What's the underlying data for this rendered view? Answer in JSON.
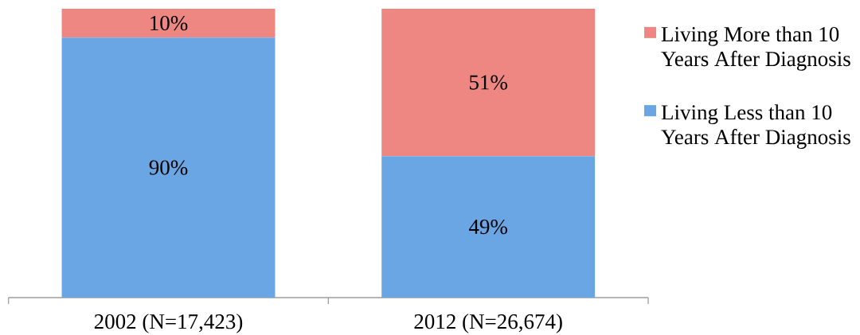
{
  "chart_data": {
    "type": "bar",
    "stacked": true,
    "categories": [
      "2002 (N=17,423)",
      "2012 (N=26,674)"
    ],
    "series": [
      {
        "name": "Living Less than 10 Years After Diagnosis",
        "color": "#6aa6e4",
        "values": [
          90,
          49
        ],
        "value_labels": [
          "90%",
          "49%"
        ]
      },
      {
        "name": "Living More than 10 Years After Diagnosis",
        "color": "#ee8781",
        "values": [
          10,
          51
        ],
        "value_labels": [
          "10%",
          "51%"
        ]
      }
    ],
    "ylim": [
      0,
      100
    ],
    "legend": "top right"
  }
}
